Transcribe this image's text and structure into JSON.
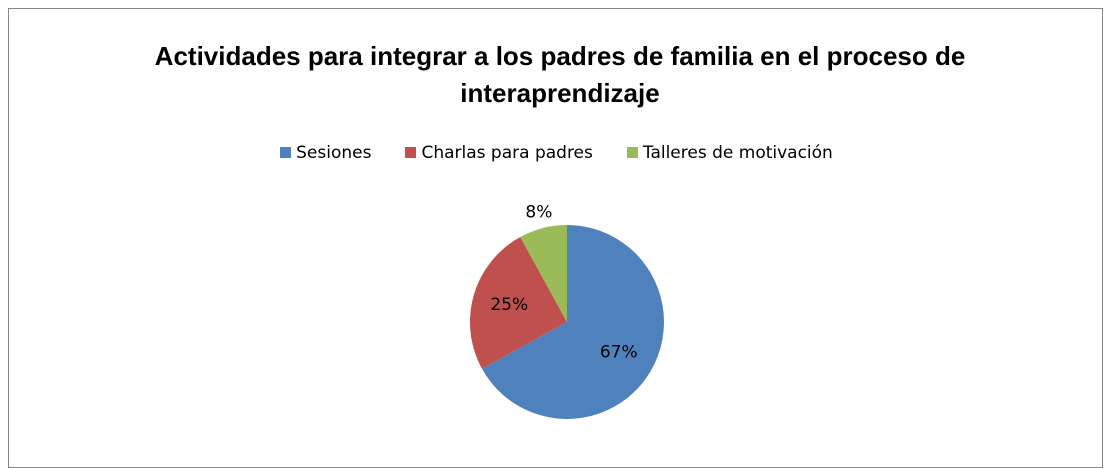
{
  "chart_data": {
    "type": "pie",
    "title": "Actividades para integrar a los padres de familia en el proceso de interaprendizaje",
    "categories": [
      "Sesiones",
      "Charlas para padres",
      "Talleres de motivación"
    ],
    "values": [
      67,
      25,
      8
    ],
    "value_labels": [
      "67%",
      "25%",
      "8%"
    ],
    "colors": [
      "#4f81bd",
      "#c0504d",
      "#9bbb59"
    ],
    "legend": "top"
  }
}
